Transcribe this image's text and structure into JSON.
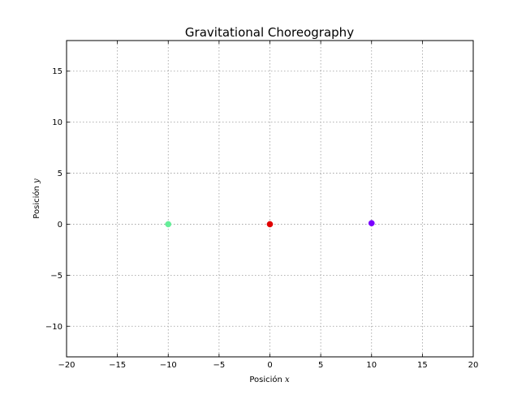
{
  "chart_data": {
    "type": "scatter",
    "title": "Gravitational Choreography",
    "xlabel": "Posición",
    "xlabel_var": "x",
    "ylabel": "Posición",
    "ylabel_var": "y",
    "xlim": [
      -20,
      20
    ],
    "ylim": [
      -13,
      18
    ],
    "xticks": [
      -20,
      -15,
      -10,
      -5,
      0,
      5,
      10,
      15,
      20
    ],
    "yticks": [
      -10,
      -5,
      0,
      5,
      10,
      15
    ],
    "xtick_labels": [
      "−20",
      "−15",
      "−10",
      "−5",
      "0",
      "5",
      "10",
      "15",
      "20"
    ],
    "ytick_labels": [
      "−10",
      "−5",
      "0",
      "5",
      "10",
      "15"
    ],
    "grid": true,
    "points": [
      {
        "x": -10,
        "y": 0,
        "color": "#66ee99"
      },
      {
        "x": 0,
        "y": 0,
        "color": "#e00000"
      },
      {
        "x": 10,
        "y": 0.1,
        "color": "#7a00ff"
      }
    ]
  }
}
